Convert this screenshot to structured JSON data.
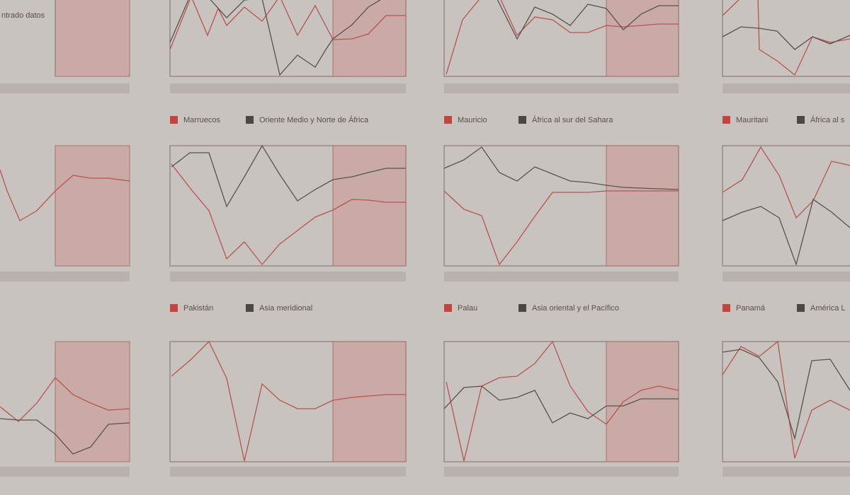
{
  "note_text": "ntrado datos",
  "legends": [
    {
      "country": "Marruecos",
      "region": "Oriente Medio y Norte de África"
    },
    {
      "country": "Mauricio",
      "region": "África al sur del Sahara"
    },
    {
      "country": "Mauritani",
      "region": "África al s"
    },
    {
      "country": "Pakistán",
      "region": "Asia meridional"
    },
    {
      "country": "Palau",
      "region": "Asia oriental y el Pacífico"
    },
    {
      "country": "Panamá",
      "region": "América L"
    }
  ]
}
